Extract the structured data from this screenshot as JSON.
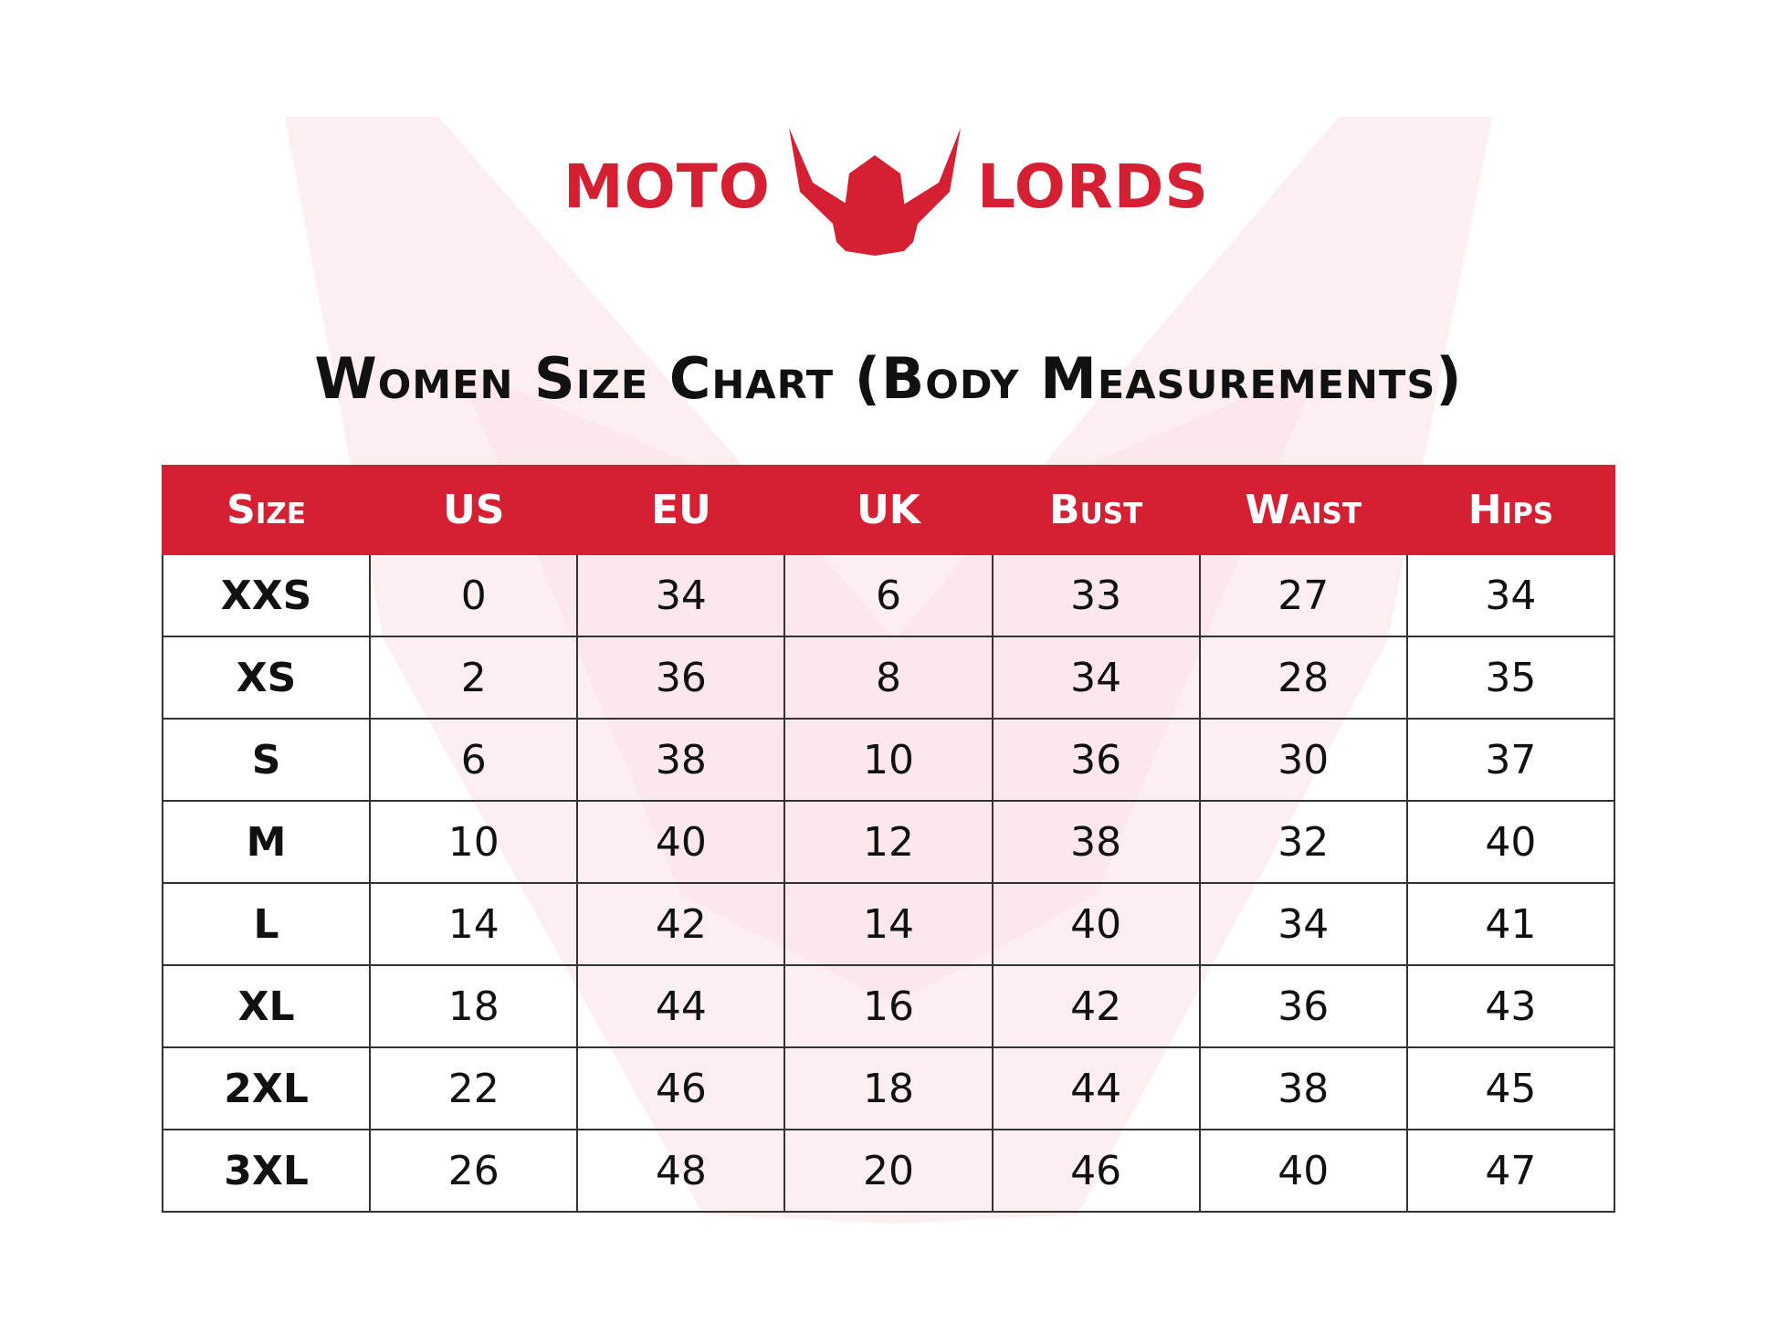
{
  "logo": {
    "left": "MOTO",
    "right": "LORDS"
  },
  "title": "Women Size Chart (Body Measurements)",
  "table": {
    "header": [
      "Size",
      "US",
      "EU",
      "UK",
      "Bust",
      "Waist",
      "Hips"
    ],
    "rows": [
      [
        "XXS",
        "0",
        "34",
        "6",
        "33",
        "27",
        "34"
      ],
      [
        "XS",
        "2",
        "36",
        "8",
        "34",
        "28",
        "35"
      ],
      [
        "S",
        "6",
        "38",
        "10",
        "36",
        "30",
        "37"
      ],
      [
        "M",
        "10",
        "40",
        "12",
        "38",
        "32",
        "40"
      ],
      [
        "L",
        "14",
        "42",
        "14",
        "40",
        "34",
        "41"
      ],
      [
        "XL",
        "18",
        "44",
        "16",
        "42",
        "36",
        "43"
      ],
      [
        "2XL",
        "22",
        "46",
        "18",
        "44",
        "38",
        "45"
      ],
      [
        "3XL",
        "26",
        "48",
        "20",
        "46",
        "40",
        "47"
      ]
    ]
  }
}
